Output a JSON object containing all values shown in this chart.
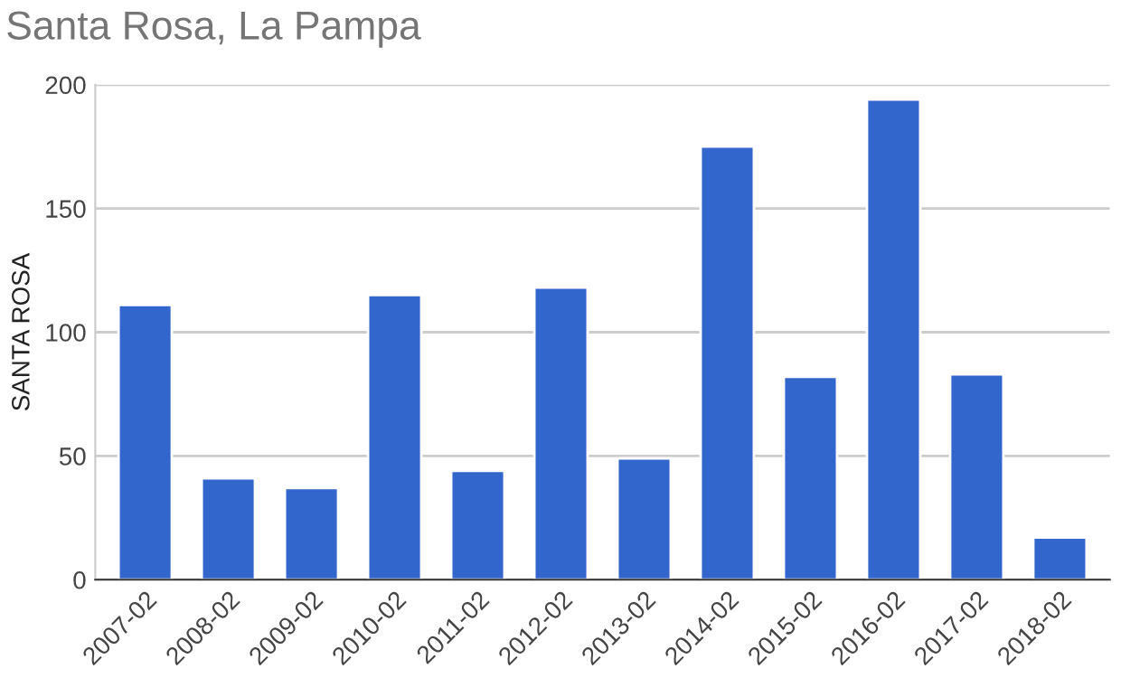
{
  "chart_data": {
    "type": "bar",
    "title": "Santa Rosa, La Pampa",
    "ylabel": "SANTA ROSA",
    "categories": [
      "2007-02",
      "2008-02",
      "2009-02",
      "2010-02",
      "2011-02",
      "2012-02",
      "2013-02",
      "2014-02",
      "2015-02",
      "2016-02",
      "2017-02",
      "2018-02"
    ],
    "values": [
      111,
      41,
      37,
      115,
      44,
      118,
      49,
      175,
      82,
      194,
      83,
      17
    ],
    "color": "#3366cc",
    "ylim": [
      0,
      200
    ],
    "yticks": [
      0,
      50,
      100,
      150,
      200
    ],
    "grid": "y",
    "legend": false
  }
}
